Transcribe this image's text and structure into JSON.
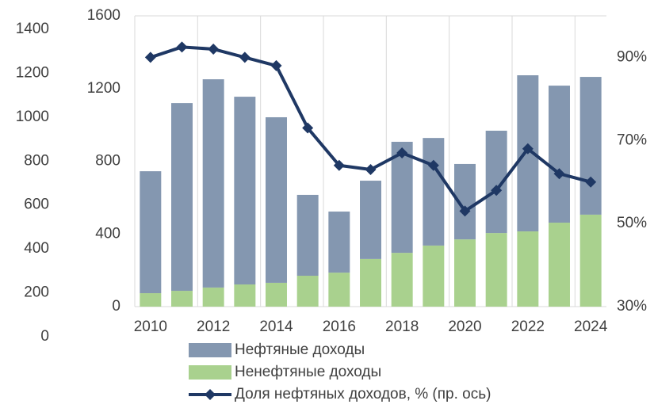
{
  "chart_data": {
    "type": "bar+line",
    "categories": [
      "2010",
      null,
      "2012",
      null,
      "2014",
      null,
      "2016",
      null,
      "2018",
      null,
      "2020",
      null,
      "2022",
      null,
      "2024"
    ],
    "series": [
      {
        "name": "Нефтяные доходы",
        "color": "#8497b0",
        "stack": "revenue",
        "values": [
          671,
          1033,
          1146,
          1033,
          911,
          445,
          336,
          431,
          611,
          592,
          415,
          563,
          859,
          754,
          758
        ]
      },
      {
        "name": "Ненефтяные доходы",
        "color": "#a9d18e",
        "stack": "revenue",
        "values": [
          74,
          87,
          105,
          122,
          131,
          170,
          187,
          262,
          296,
          336,
          370,
          405,
          414,
          462,
          506
        ]
      },
      {
        "name": "Доля нефтяных доходов, % (пр. ось)",
        "color": "#1f3864",
        "axis": "y2",
        "values": [
          90,
          92.5,
          92,
          90,
          88,
          73,
          64,
          63,
          67,
          64,
          53,
          58,
          68,
          62,
          60
        ]
      }
    ],
    "ylim": [
      0,
      1600
    ],
    "yticks": [
      0,
      400,
      800,
      1200,
      1600
    ],
    "y2lim": [
      30,
      100
    ],
    "y2ticks": [
      {
        "value": 30,
        "label": "30%"
      },
      {
        "value": 50,
        "label": "50%"
      },
      {
        "value": 70,
        "label": "70%"
      },
      {
        "value": 90,
        "label": "90%"
      }
    ],
    "y3lim": [
      0,
      1400
    ],
    "y3ticks": [
      0,
      200,
      400,
      600,
      800,
      1000,
      1200,
      1400
    ],
    "grid": "x",
    "legend": "bottom"
  }
}
